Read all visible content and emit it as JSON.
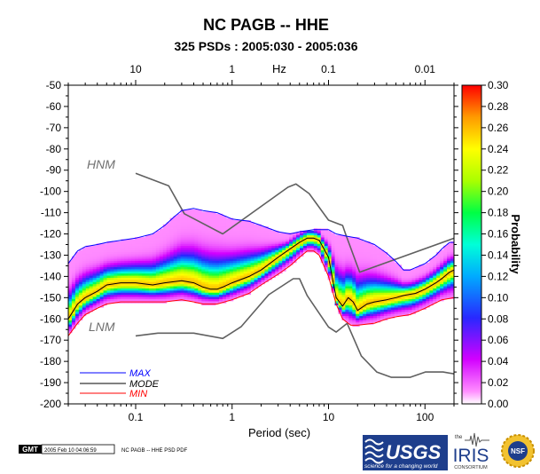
{
  "header": {
    "title": "NC PAGB -- HHE",
    "subtitle": "325 PSDs : 2005:030 - 2005:036"
  },
  "footer": {
    "gmt_label": "GMT",
    "timestamp": "2005 Feb 10 04:06:59",
    "caption": "NC PAGB -- HHE PSD PDF",
    "usgs_logo_text": "USGS",
    "usgs_tagline": "science for a changing world",
    "iris_the": "the",
    "iris_logo_text": "IRIS",
    "iris_consortium": "CONSORTIUM",
    "nsf_logo_text": "NSF"
  },
  "chart_data": {
    "type": "heatmap",
    "xlabel": "Period (sec)",
    "top_xlabel": "Hz",
    "x_scale": "log",
    "xlim": [
      0.02,
      200
    ],
    "ylim": [
      -200,
      -50
    ],
    "x_ticks": [
      {
        "value": 0.1,
        "label": "0.1"
      },
      {
        "value": 1,
        "label": "1"
      },
      {
        "value": 10,
        "label": "10"
      },
      {
        "value": 100,
        "label": "100"
      }
    ],
    "top_ticks": [
      {
        "value": 0.1,
        "label": "10"
      },
      {
        "value": 1,
        "label": "1"
      },
      {
        "value": 10,
        "label": "0.1"
      },
      {
        "value": 100,
        "label": "0.01"
      }
    ],
    "y_ticks": [
      -50,
      -60,
      -70,
      -80,
      -90,
      -100,
      -110,
      -120,
      -130,
      -140,
      -150,
      -160,
      -170,
      -180,
      -190,
      -200
    ],
    "colorbar": {
      "label": "Probability",
      "range": [
        0,
        0.3
      ],
      "ticks": [
        "0.30",
        "0.28",
        "0.26",
        "0.24",
        "0.22",
        "0.20",
        "0.18",
        "0.16",
        "0.14",
        "0.12",
        "0.10",
        "0.08",
        "0.06",
        "0.04",
        "0.02",
        "0.00"
      ]
    },
    "legend": {
      "placement": "bottom-left",
      "entries": [
        {
          "name": "MAX",
          "color": "#0000ff"
        },
        {
          "name": "MODE",
          "color": "#000000"
        },
        {
          "name": "MIN",
          "color": "#ff0000"
        }
      ]
    },
    "reference_labels": {
      "hnm": "HNM",
      "lnm": "LNM"
    },
    "series": {
      "max": [
        [
          0.02,
          -134
        ],
        [
          0.025,
          -128
        ],
        [
          0.03,
          -126
        ],
        [
          0.04,
          -125
        ],
        [
          0.05,
          -124
        ],
        [
          0.07,
          -123
        ],
        [
          0.1,
          -122
        ],
        [
          0.15,
          -120
        ],
        [
          0.2,
          -116
        ],
        [
          0.25,
          -112
        ],
        [
          0.3,
          -109
        ],
        [
          0.4,
          -108
        ],
        [
          0.5,
          -109
        ],
        [
          0.7,
          -110
        ],
        [
          1,
          -113
        ],
        [
          1.5,
          -114
        ],
        [
          2,
          -116
        ],
        [
          3,
          -119
        ],
        [
          4,
          -120
        ],
        [
          5,
          -119
        ],
        [
          7,
          -118
        ],
        [
          10,
          -118
        ],
        [
          12,
          -120
        ],
        [
          15,
          -121
        ],
        [
          20,
          -122
        ],
        [
          30,
          -125
        ],
        [
          40,
          -129
        ],
        [
          50,
          -133
        ],
        [
          60,
          -137
        ],
        [
          70,
          -137
        ],
        [
          100,
          -134
        ],
        [
          130,
          -130
        ],
        [
          150,
          -127
        ],
        [
          180,
          -124
        ],
        [
          200,
          -124
        ]
      ],
      "mode": [
        [
          0.02,
          -160
        ],
        [
          0.025,
          -153
        ],
        [
          0.03,
          -150
        ],
        [
          0.04,
          -147
        ],
        [
          0.05,
          -144
        ],
        [
          0.07,
          -143
        ],
        [
          0.1,
          -143
        ],
        [
          0.15,
          -144
        ],
        [
          0.2,
          -143
        ],
        [
          0.3,
          -142
        ],
        [
          0.4,
          -143
        ],
        [
          0.5,
          -145
        ],
        [
          0.6,
          -146
        ],
        [
          0.7,
          -146
        ],
        [
          0.8,
          -145
        ],
        [
          1,
          -143
        ],
        [
          1.5,
          -140
        ],
        [
          2,
          -137
        ],
        [
          3,
          -131
        ],
        [
          4,
          -127
        ],
        [
          5,
          -124
        ],
        [
          6,
          -122
        ],
        [
          7,
          -122
        ],
        [
          8,
          -123
        ],
        [
          10,
          -131
        ],
        [
          11,
          -141
        ],
        [
          12,
          -150
        ],
        [
          14,
          -154
        ],
        [
          16,
          -150
        ],
        [
          18,
          -152
        ],
        [
          20,
          -156
        ],
        [
          25,
          -153
        ],
        [
          30,
          -152
        ],
        [
          40,
          -151
        ],
        [
          50,
          -150
        ],
        [
          60,
          -149
        ],
        [
          80,
          -148
        ],
        [
          100,
          -146
        ],
        [
          130,
          -143
        ],
        [
          150,
          -141
        ],
        [
          180,
          -138
        ],
        [
          200,
          -137
        ]
      ],
      "min": [
        [
          0.02,
          -168
        ],
        [
          0.025,
          -162
        ],
        [
          0.03,
          -158
        ],
        [
          0.04,
          -155
        ],
        [
          0.05,
          -153
        ],
        [
          0.07,
          -152
        ],
        [
          0.1,
          -152
        ],
        [
          0.15,
          -152
        ],
        [
          0.2,
          -152
        ],
        [
          0.3,
          -151
        ],
        [
          0.4,
          -152
        ],
        [
          0.5,
          -153
        ],
        [
          0.7,
          -153
        ],
        [
          1,
          -151
        ],
        [
          1.5,
          -148
        ],
        [
          2,
          -144
        ],
        [
          3,
          -139
        ],
        [
          4,
          -135
        ],
        [
          5,
          -131
        ],
        [
          6,
          -128
        ],
        [
          7,
          -128
        ],
        [
          8,
          -130
        ],
        [
          10,
          -140
        ],
        [
          12,
          -153
        ],
        [
          14,
          -160
        ],
        [
          17,
          -163
        ],
        [
          20,
          -163
        ],
        [
          30,
          -162
        ],
        [
          40,
          -160
        ],
        [
          50,
          -159
        ],
        [
          70,
          -158
        ],
        [
          100,
          -155
        ],
        [
          150,
          -151
        ],
        [
          200,
          -150
        ]
      ],
      "hnm": [
        [
          0.1,
          -91.5
        ],
        [
          0.22,
          -97.4
        ],
        [
          0.32,
          -110.5
        ],
        [
          0.8,
          -120
        ],
        [
          3.8,
          -98
        ],
        [
          4.6,
          -96.5
        ],
        [
          6.3,
          -101
        ],
        [
          10,
          -113.5
        ],
        [
          14,
          -116
        ],
        [
          15,
          -120
        ],
        [
          21,
          -138
        ],
        [
          354,
          -118
        ]
      ],
      "lnm": [
        [
          0.1,
          -168
        ],
        [
          0.17,
          -166.7
        ],
        [
          0.4,
          -166.7
        ],
        [
          0.8,
          -169.2
        ],
        [
          1.24,
          -163.7
        ],
        [
          2.4,
          -148.6
        ],
        [
          4.3,
          -141.1
        ],
        [
          5,
          -141.1
        ],
        [
          6,
          -149
        ],
        [
          10,
          -163.8
        ],
        [
          12,
          -166.2
        ],
        [
          15.6,
          -162.1
        ],
        [
          21.9,
          -177.5
        ],
        [
          31.6,
          -185
        ],
        [
          45,
          -187.5
        ],
        [
          70,
          -187.5
        ],
        [
          101,
          -185
        ],
        [
          154,
          -185
        ],
        [
          328,
          -187.5
        ]
      ]
    }
  }
}
